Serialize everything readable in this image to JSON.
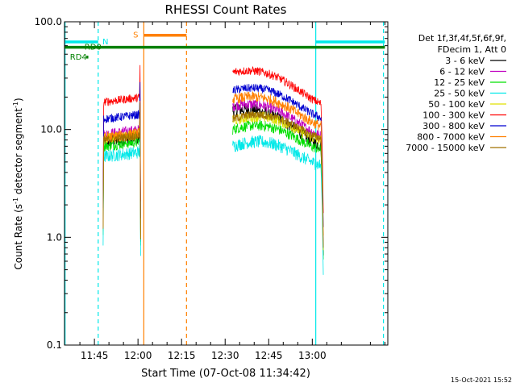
{
  "chart_data": {
    "type": "line",
    "title": "RHESSI Count Rates",
    "xlabel": "Start Time (07-Oct-08 11:34:42)",
    "ylabel_main": "Count Rate (s",
    "ylabel_sup1": "-1",
    "ylabel_mid": " detector segment",
    "ylabel_sup2": "-1",
    "ylabel_end": ")",
    "yscale": "log",
    "ylim": [
      0.1,
      100.0
    ],
    "xlim_minutes": [
      34.7,
      146.0
    ],
    "x_ticks": [
      {
        "label": "11:45",
        "minute": 45
      },
      {
        "label": "12:00",
        "minute": 60
      },
      {
        "label": "12:15",
        "minute": 75
      },
      {
        "label": "12:30",
        "minute": 90
      },
      {
        "label": "12:45",
        "minute": 105
      },
      {
        "label": "13:00",
        "minute": 120
      }
    ],
    "y_ticks": [
      {
        "label": "100.0",
        "value": 100.0
      },
      {
        "label": "10.0",
        "value": 10.0
      },
      {
        "label": "1.0",
        "value": 1.0
      },
      {
        "label": "0.1",
        "value": 0.1
      }
    ],
    "legend_header": [
      "Det 1f,3f,4f,5f,6f,9f,",
      "FDecim 1, Att 0"
    ],
    "legend_position": "top-right",
    "series": [
      {
        "name": "3 - 6 keV",
        "color": "#000000",
        "seg1": 7.6,
        "seg2_start": 15.0,
        "seg2_end": 8.5,
        "noise": 0.06
      },
      {
        "name": "6 - 12 keV",
        "color": "#c000c0",
        "seg1": 9.0,
        "seg2_start": 16.5,
        "seg2_end": 10.5,
        "noise": 0.05
      },
      {
        "name": "12 - 25 keV",
        "color": "#00e000",
        "seg1": 7.0,
        "seg2_start": 10.0,
        "seg2_end": 7.8,
        "noise": 0.05
      },
      {
        "name": "25 - 50 keV",
        "color": "#00e8e8",
        "seg1": 5.6,
        "seg2_start": 7.0,
        "seg2_end": 5.6,
        "noise": 0.06
      },
      {
        "name": "50 - 100 keV",
        "color": "#e0e000",
        "seg1": 8.2,
        "seg2_start": 12.0,
        "seg2_end": 9.5,
        "noise": 0.05
      },
      {
        "name": "100 - 300 keV",
        "color": "#ff0000",
        "seg1": 18.0,
        "seg2_start": 34.0,
        "seg2_end": 21.0,
        "noise": 0.04
      },
      {
        "name": "300 - 800 keV",
        "color": "#0000d0",
        "seg1": 12.5,
        "seg2_start": 23.0,
        "seg2_end": 15.5,
        "noise": 0.04
      },
      {
        "name": "800 - 7000 keV",
        "color": "#ff8000",
        "seg1": 8.4,
        "seg2_start": 19.0,
        "seg2_end": 13.0,
        "noise": 0.05
      },
      {
        "name": "7000 - 15000 keV",
        "color": "#a07000",
        "seg1": 8.0,
        "seg2_start": 12.5,
        "seg2_end": 10.0,
        "noise": 0.04
      }
    ],
    "data_segments_minutes": [
      [
        48.0,
        60.9
      ],
      [
        92.6,
        123.0
      ]
    ],
    "flags": [
      {
        "label": "N",
        "color": "#00e8e8",
        "level": 65.0,
        "ranges": [
          [
            34.7,
            46.3
          ],
          [
            121.2,
            145.0
          ]
        ]
      },
      {
        "label": "S",
        "color": "#ff8000",
        "level": 75.0,
        "ranges": [
          [
            62.0,
            76.7
          ]
        ]
      },
      {
        "label": "RD0",
        "color": "#008000",
        "level": 58.0,
        "ranges": [
          [
            34.7,
            145.0
          ]
        ]
      },
      {
        "label": "RD4",
        "color": "#008000",
        "level": 47.0,
        "ranges": [
          [
            42.2,
            42.9
          ]
        ]
      }
    ],
    "vlines": [
      {
        "minute": 46.3,
        "color": "#00e8e8",
        "style": "dashed"
      },
      {
        "minute": 62.0,
        "color": "#ff8000",
        "style": "solid"
      },
      {
        "minute": 76.7,
        "color": "#ff8000",
        "style": "dashed"
      },
      {
        "minute": 121.2,
        "color": "#00e8e8",
        "style": "solid"
      },
      {
        "minute": 144.5,
        "color": "#00e8e8",
        "style": "dashed"
      },
      {
        "minute": 34.9,
        "color": "#00e8e8",
        "style": "solid"
      }
    ],
    "footer_date": "15-Oct-2021 15:52"
  }
}
